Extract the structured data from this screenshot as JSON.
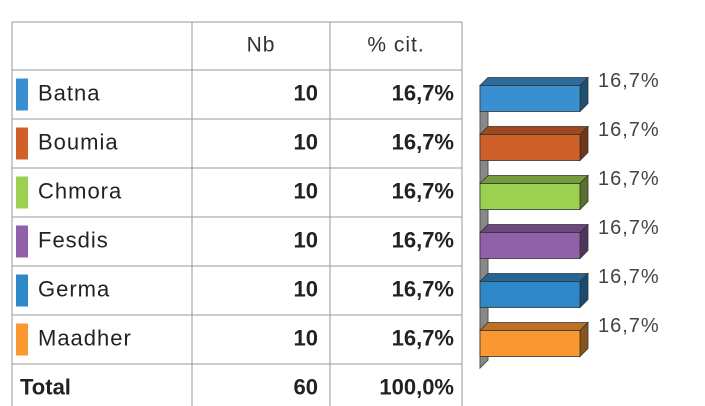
{
  "table": {
    "header": [
      "Nb",
      "% cit."
    ],
    "rows": [
      {
        "name": "Batna",
        "color": "#3a8fd0",
        "nb": 10,
        "pct": 16.7,
        "pct_label": "16,7%"
      },
      {
        "name": "Boumia",
        "color": "#d0602a",
        "nb": 10,
        "pct": 16.7,
        "pct_label": "16,7%"
      },
      {
        "name": "Chmora",
        "color": "#9cd050",
        "nb": 10,
        "pct": 16.7,
        "pct_label": "16,7%"
      },
      {
        "name": "Fesdis",
        "color": "#9060a8",
        "nb": 10,
        "pct": 16.7,
        "pct_label": "16,7%"
      },
      {
        "name": "Germa",
        "color": "#2e88c8",
        "nb": 10,
        "pct": 16.7,
        "pct_label": "16,7%"
      },
      {
        "name": "Maadher",
        "color": "#f99830",
        "nb": 10,
        "pct": 16.7,
        "pct_label": "16,7%"
      }
    ],
    "total": {
      "name": "Total",
      "nb": 60,
      "pct_label": "100,0%"
    }
  }
}
